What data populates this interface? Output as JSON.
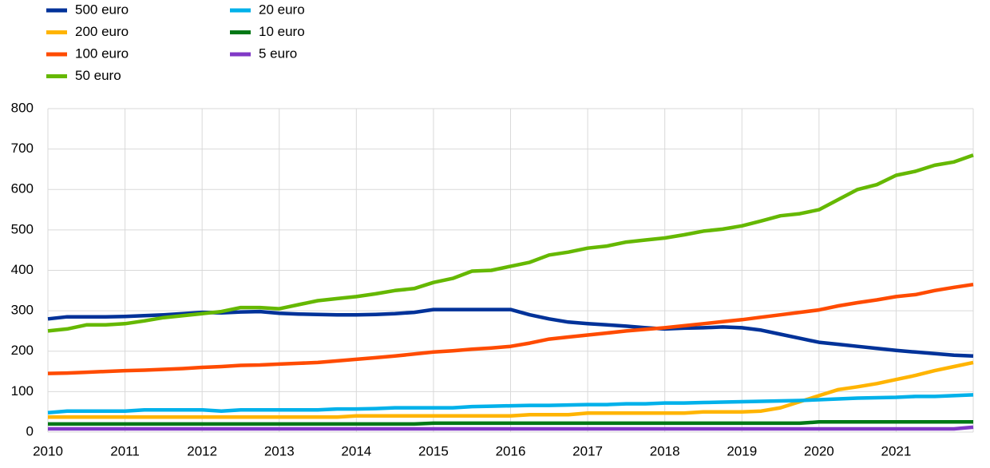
{
  "chart_data": {
    "type": "line",
    "x": [
      2010,
      2010.25,
      2010.5,
      2010.75,
      2011,
      2011.25,
      2011.5,
      2011.75,
      2012,
      2012.25,
      2012.5,
      2012.75,
      2013,
      2013.25,
      2013.5,
      2013.75,
      2014,
      2014.25,
      2014.5,
      2014.75,
      2015,
      2015.25,
      2015.5,
      2015.75,
      2016,
      2016.25,
      2016.5,
      2016.75,
      2017,
      2017.25,
      2017.5,
      2017.75,
      2018,
      2018.25,
      2018.5,
      2018.75,
      2019,
      2019.25,
      2019.5,
      2019.75,
      2020,
      2020.25,
      2020.5,
      2020.75,
      2021,
      2021.25,
      2021.5,
      2021.75,
      2022
    ],
    "xlim": [
      2010,
      2022
    ],
    "xticks": [
      2010,
      2011,
      2012,
      2013,
      2014,
      2015,
      2016,
      2017,
      2018,
      2019,
      2020,
      2021
    ],
    "ylim": [
      0,
      800
    ],
    "yticks": [
      0,
      100,
      200,
      300,
      400,
      500,
      600,
      700,
      800
    ],
    "grid": true,
    "series": [
      {
        "name": "500 euro",
        "color": "#003299",
        "values": [
          280,
          285,
          285,
          285,
          286,
          288,
          290,
          293,
          296,
          295,
          297,
          298,
          294,
          292,
          291,
          290,
          290,
          291,
          293,
          296,
          303,
          303,
          303,
          303,
          303,
          290,
          280,
          272,
          268,
          265,
          262,
          258,
          255,
          257,
          258,
          260,
          258,
          252,
          242,
          232,
          222,
          217,
          212,
          207,
          202,
          198,
          194,
          190,
          188
        ]
      },
      {
        "name": "200 euro",
        "color": "#ffb400",
        "values": [
          37,
          37,
          37,
          37,
          37,
          37,
          37,
          37,
          37,
          37,
          37,
          37,
          37,
          37,
          37,
          37,
          40,
          40,
          40,
          40,
          40,
          40,
          40,
          40,
          40,
          43,
          43,
          43,
          47,
          47,
          47,
          47,
          47,
          47,
          50,
          50,
          50,
          52,
          60,
          75,
          90,
          105,
          112,
          120,
          130,
          140,
          152,
          162,
          172
        ]
      },
      {
        "name": "100 euro",
        "color": "#ff4b00",
        "values": [
          145,
          146,
          148,
          150,
          152,
          153,
          155,
          157,
          160,
          162,
          165,
          166,
          168,
          170,
          172,
          176,
          180,
          184,
          188,
          193,
          198,
          201,
          205,
          208,
          212,
          220,
          230,
          235,
          240,
          245,
          250,
          254,
          258,
          263,
          268,
          273,
          278,
          284,
          290,
          296,
          302,
          312,
          320,
          327,
          335,
          340,
          350,
          358,
          365
        ]
      },
      {
        "name": "50 euro",
        "color": "#65b800",
        "values": [
          250,
          255,
          265,
          265,
          268,
          275,
          283,
          288,
          293,
          298,
          308,
          308,
          305,
          315,
          325,
          330,
          335,
          342,
          350,
          355,
          370,
          380,
          398,
          400,
          410,
          420,
          438,
          445,
          455,
          460,
          470,
          475,
          480,
          488,
          497,
          502,
          510,
          522,
          535,
          540,
          550,
          575,
          600,
          612,
          635,
          645,
          660,
          668,
          685
        ]
      },
      {
        "name": "20 euro",
        "color": "#00b1ea",
        "values": [
          48,
          52,
          52,
          52,
          52,
          55,
          55,
          55,
          55,
          52,
          55,
          55,
          55,
          55,
          55,
          57,
          57,
          58,
          60,
          60,
          60,
          60,
          63,
          64,
          65,
          66,
          66,
          67,
          68,
          68,
          70,
          70,
          72,
          72,
          73,
          74,
          75,
          76,
          77,
          78,
          80,
          82,
          84,
          85,
          86,
          88,
          88,
          90,
          92
        ]
      },
      {
        "name": "10 euro",
        "color": "#007816",
        "values": [
          20,
          20,
          20,
          20,
          20,
          20,
          20,
          20,
          20,
          20,
          20,
          20,
          20,
          20,
          20,
          20,
          20,
          20,
          20,
          20,
          22,
          22,
          22,
          22,
          22,
          22,
          22,
          22,
          22,
          22,
          22,
          22,
          22,
          22,
          22,
          22,
          22,
          22,
          22,
          22,
          25,
          25,
          25,
          25,
          25,
          25,
          25,
          25,
          25
        ]
      },
      {
        "name": "5 euro",
        "color": "#8139c6",
        "values": [
          8,
          8,
          8,
          8,
          8,
          8,
          8,
          8,
          8,
          8,
          8,
          8,
          8,
          8,
          8,
          8,
          8,
          8,
          8,
          8,
          8,
          8,
          8,
          8,
          8,
          8,
          8,
          8,
          8,
          8,
          8,
          8,
          8,
          8,
          8,
          8,
          8,
          8,
          8,
          8,
          8,
          8,
          8,
          8,
          8,
          8,
          8,
          8,
          12
        ]
      }
    ]
  }
}
